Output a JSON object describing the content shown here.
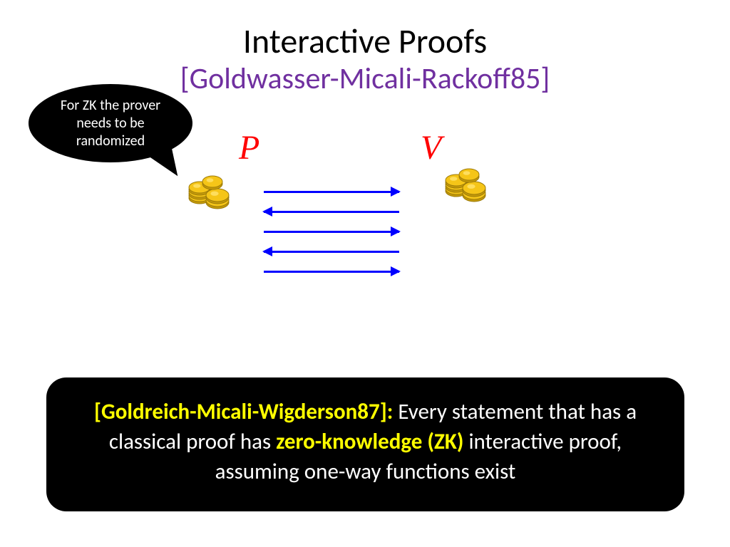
{
  "title": "Interactive Proofs",
  "subtitle": "[Goldwasser-Micali-Rackoff85]",
  "subtitle_color": "#7030a0",
  "bubble_text": "For ZK the prover needs to be randomized",
  "prover_label": "P",
  "verifier_label": "V",
  "label_color": "#ff0000",
  "arrow_color": "#0000ff",
  "arrows": [
    {
      "dir": "right"
    },
    {
      "dir": "left"
    },
    {
      "dir": "right"
    },
    {
      "dir": "left"
    },
    {
      "dir": "right"
    }
  ],
  "coin_colors": {
    "light": "#ffe066",
    "mid": "#f5c518",
    "dark": "#c49a0a",
    "edge": "#9c7a08"
  },
  "footer": {
    "ref": "[Goldreich-Micali-Wigderson87]:",
    "t1": " Every statement that has a classical proof has  ",
    "zk": "zero-knowledge (ZK)",
    "t2": " interactive proof, assuming one-way functions exist"
  }
}
